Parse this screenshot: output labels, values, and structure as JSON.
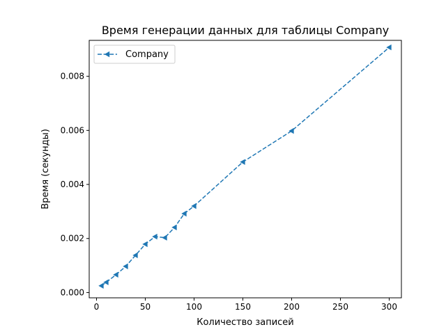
{
  "chart_data": {
    "type": "line",
    "title": "Время генерации данных для таблицы Company",
    "xlabel": "Количество записей",
    "ylabel": "Время (секунды)",
    "xlim": [
      -7.5,
      312.5
    ],
    "ylim": [
      -0.000195,
      0.00933
    ],
    "xticks": [
      0,
      50,
      100,
      150,
      200,
      250,
      300
    ],
    "xtick_labels": [
      "0",
      "50",
      "100",
      "150",
      "200",
      "250",
      "300"
    ],
    "yticks": [
      0,
      0.002,
      0.004,
      0.006,
      0.008
    ],
    "ytick_labels": [
      "0.000",
      "0.002",
      "0.004",
      "0.006",
      "0.008"
    ],
    "grid": false,
    "legend_position": "upper-left",
    "series": [
      {
        "name": "Company",
        "color": "#1f77b4",
        "line_style": "dashed",
        "marker": "triangle-left",
        "x": [
          5,
          10,
          20,
          30,
          40,
          50,
          60,
          70,
          80,
          90,
          100,
          150,
          200,
          300
        ],
        "y": [
          0.00025,
          0.00038,
          0.00066,
          0.00097,
          0.00138,
          0.00179,
          0.00207,
          0.00203,
          0.00241,
          0.00292,
          0.0032,
          0.00483,
          0.00598,
          0.00907
        ]
      }
    ]
  }
}
